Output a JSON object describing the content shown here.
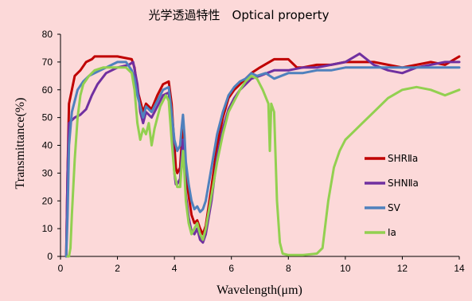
{
  "chart_data": {
    "type": "line",
    "title": "光学透過特性　Optical property",
    "xlabel": "Wavelength(μm)",
    "ylabel": "Transmittance(%)",
    "xlim": [
      0,
      14
    ],
    "ylim": [
      0,
      80
    ],
    "xticks": [
      0,
      2,
      4,
      6,
      8,
      10,
      12,
      14
    ],
    "yticks": [
      0,
      10,
      20,
      30,
      40,
      50,
      60,
      70,
      80
    ],
    "grid": false,
    "legend_position": "right",
    "series": [
      {
        "name": "SHRⅡa",
        "color": "#c00000",
        "points": [
          [
            0.2,
            0
          ],
          [
            0.25,
            30
          ],
          [
            0.3,
            55
          ],
          [
            0.4,
            60
          ],
          [
            0.5,
            65
          ],
          [
            0.7,
            67
          ],
          [
            0.9,
            70
          ],
          [
            1.1,
            71
          ],
          [
            1.2,
            72
          ],
          [
            1.6,
            72
          ],
          [
            2.0,
            72
          ],
          [
            2.5,
            71
          ],
          [
            2.6,
            68
          ],
          [
            2.7,
            60
          ],
          [
            2.8,
            56
          ],
          [
            2.9,
            52
          ],
          [
            3.0,
            55
          ],
          [
            3.2,
            53
          ],
          [
            3.4,
            58
          ],
          [
            3.6,
            62
          ],
          [
            3.8,
            63
          ],
          [
            3.9,
            55
          ],
          [
            4.0,
            40
          ],
          [
            4.05,
            32
          ],
          [
            4.1,
            30
          ],
          [
            4.2,
            32
          ],
          [
            4.25,
            40
          ],
          [
            4.3,
            46
          ],
          [
            4.35,
            40
          ],
          [
            4.4,
            30
          ],
          [
            4.5,
            22
          ],
          [
            4.6,
            15
          ],
          [
            4.7,
            12
          ],
          [
            4.8,
            13
          ],
          [
            4.9,
            10
          ],
          [
            5.0,
            8
          ],
          [
            5.1,
            11
          ],
          [
            5.3,
            25
          ],
          [
            5.5,
            40
          ],
          [
            5.7,
            50
          ],
          [
            5.9,
            57
          ],
          [
            6.1,
            60
          ],
          [
            6.3,
            62
          ],
          [
            6.5,
            64
          ],
          [
            6.7,
            66
          ],
          [
            7.0,
            68
          ],
          [
            7.5,
            71
          ],
          [
            8.0,
            71
          ],
          [
            8.3,
            68
          ],
          [
            8.5,
            68
          ],
          [
            9.0,
            69
          ],
          [
            9.5,
            69
          ],
          [
            10,
            70
          ],
          [
            10.5,
            70
          ],
          [
            11,
            70
          ],
          [
            11.5,
            69
          ],
          [
            12,
            68
          ],
          [
            12.5,
            69
          ],
          [
            13,
            70
          ],
          [
            13.5,
            69
          ],
          [
            14,
            72
          ]
        ]
      },
      {
        "name": "SHNⅡa",
        "color": "#7030a0",
        "points": [
          [
            0.2,
            0
          ],
          [
            0.25,
            30
          ],
          [
            0.3,
            48
          ],
          [
            0.5,
            50
          ],
          [
            0.7,
            51
          ],
          [
            0.9,
            53
          ],
          [
            1.1,
            58
          ],
          [
            1.3,
            62
          ],
          [
            1.6,
            66
          ],
          [
            2.0,
            68
          ],
          [
            2.4,
            69
          ],
          [
            2.55,
            70
          ],
          [
            2.7,
            62
          ],
          [
            2.8,
            52
          ],
          [
            2.9,
            48
          ],
          [
            3.0,
            52
          ],
          [
            3.2,
            50
          ],
          [
            3.4,
            54
          ],
          [
            3.6,
            58
          ],
          [
            3.8,
            59
          ],
          [
            3.9,
            48
          ],
          [
            4.0,
            30
          ],
          [
            4.05,
            26
          ],
          [
            4.1,
            26
          ],
          [
            4.2,
            28
          ],
          [
            4.25,
            36
          ],
          [
            4.3,
            42
          ],
          [
            4.35,
            34
          ],
          [
            4.4,
            22
          ],
          [
            4.5,
            14
          ],
          [
            4.6,
            9
          ],
          [
            4.7,
            8
          ],
          [
            4.8,
            10
          ],
          [
            4.9,
            6
          ],
          [
            5.0,
            5
          ],
          [
            5.1,
            8
          ],
          [
            5.3,
            20
          ],
          [
            5.5,
            36
          ],
          [
            5.7,
            46
          ],
          [
            5.9,
            53
          ],
          [
            6.1,
            57
          ],
          [
            6.3,
            60
          ],
          [
            6.5,
            62
          ],
          [
            6.7,
            64
          ],
          [
            7.0,
            65
          ],
          [
            7.5,
            67
          ],
          [
            8.0,
            67
          ],
          [
            8.5,
            68
          ],
          [
            9.0,
            68
          ],
          [
            9.5,
            69
          ],
          [
            10,
            70
          ],
          [
            10.5,
            73
          ],
          [
            11,
            69
          ],
          [
            11.5,
            67
          ],
          [
            12,
            66
          ],
          [
            12.5,
            68
          ],
          [
            13,
            69
          ],
          [
            13.5,
            70
          ],
          [
            14,
            70
          ]
        ]
      },
      {
        "name": "SV",
        "color": "#4f81bd",
        "points": [
          [
            0.2,
            0
          ],
          [
            0.25,
            15
          ],
          [
            0.3,
            40
          ],
          [
            0.4,
            52
          ],
          [
            0.6,
            60
          ],
          [
            0.8,
            63
          ],
          [
            1.0,
            65
          ],
          [
            1.2,
            66
          ],
          [
            1.4,
            67
          ],
          [
            1.6,
            68
          ],
          [
            1.8,
            69
          ],
          [
            2.0,
            70
          ],
          [
            2.3,
            70
          ],
          [
            2.5,
            67
          ],
          [
            2.6,
            64
          ],
          [
            2.7,
            58
          ],
          [
            2.8,
            54
          ],
          [
            2.9,
            50
          ],
          [
            3.0,
            54
          ],
          [
            3.2,
            52
          ],
          [
            3.4,
            56
          ],
          [
            3.6,
            60
          ],
          [
            3.8,
            61
          ],
          [
            3.9,
            52
          ],
          [
            4.0,
            42
          ],
          [
            4.1,
            38
          ],
          [
            4.2,
            40
          ],
          [
            4.25,
            46
          ],
          [
            4.3,
            51
          ],
          [
            4.35,
            44
          ],
          [
            4.4,
            34
          ],
          [
            4.5,
            26
          ],
          [
            4.6,
            20
          ],
          [
            4.7,
            17
          ],
          [
            4.8,
            18
          ],
          [
            4.9,
            16
          ],
          [
            5.0,
            17
          ],
          [
            5.1,
            20
          ],
          [
            5.3,
            32
          ],
          [
            5.5,
            44
          ],
          [
            5.7,
            52
          ],
          [
            5.9,
            58
          ],
          [
            6.1,
            61
          ],
          [
            6.3,
            63
          ],
          [
            6.5,
            64
          ],
          [
            6.7,
            66
          ],
          [
            6.9,
            65
          ],
          [
            7.2,
            66
          ],
          [
            7.5,
            64
          ],
          [
            8.0,
            66
          ],
          [
            8.5,
            66
          ],
          [
            9.0,
            67
          ],
          [
            9.5,
            67
          ],
          [
            10,
            68
          ],
          [
            10.5,
            68
          ],
          [
            11,
            68
          ],
          [
            11.5,
            68
          ],
          [
            12,
            68
          ],
          [
            12.5,
            68
          ],
          [
            13,
            68
          ],
          [
            13.5,
            68
          ],
          [
            14,
            68
          ]
        ]
      },
      {
        "name": "Ⅰa",
        "color": "#92d050",
        "points": [
          [
            0.25,
            0
          ],
          [
            0.3,
            0
          ],
          [
            0.35,
            3
          ],
          [
            0.4,
            15
          ],
          [
            0.5,
            35
          ],
          [
            0.6,
            50
          ],
          [
            0.7,
            58
          ],
          [
            0.8,
            62
          ],
          [
            1.0,
            65
          ],
          [
            1.2,
            67
          ],
          [
            1.5,
            68
          ],
          [
            2.0,
            68
          ],
          [
            2.3,
            68
          ],
          [
            2.5,
            66
          ],
          [
            2.6,
            60
          ],
          [
            2.7,
            48
          ],
          [
            2.8,
            42
          ],
          [
            2.9,
            46
          ],
          [
            3.0,
            44
          ],
          [
            3.1,
            48
          ],
          [
            3.2,
            40
          ],
          [
            3.3,
            46
          ],
          [
            3.5,
            54
          ],
          [
            3.7,
            58
          ],
          [
            3.8,
            56
          ],
          [
            3.9,
            42
          ],
          [
            4.0,
            30
          ],
          [
            4.1,
            25
          ],
          [
            4.2,
            25
          ],
          [
            4.25,
            32
          ],
          [
            4.3,
            38
          ],
          [
            4.35,
            30
          ],
          [
            4.4,
            20
          ],
          [
            4.5,
            12
          ],
          [
            4.6,
            8
          ],
          [
            4.7,
            10
          ],
          [
            4.8,
            12
          ],
          [
            4.9,
            8
          ],
          [
            5.0,
            6
          ],
          [
            5.1,
            10
          ],
          [
            5.3,
            22
          ],
          [
            5.5,
            34
          ],
          [
            5.7,
            44
          ],
          [
            5.9,
            52
          ],
          [
            6.1,
            56
          ],
          [
            6.3,
            60
          ],
          [
            6.5,
            63
          ],
          [
            6.7,
            65
          ],
          [
            6.9,
            64
          ],
          [
            7.1,
            60
          ],
          [
            7.3,
            55
          ],
          [
            7.35,
            38
          ],
          [
            7.4,
            55
          ],
          [
            7.5,
            52
          ],
          [
            7.6,
            20
          ],
          [
            7.7,
            5
          ],
          [
            7.8,
            1
          ],
          [
            8.0,
            0.5
          ],
          [
            8.5,
            0.5
          ],
          [
            9.0,
            1
          ],
          [
            9.2,
            3
          ],
          [
            9.4,
            20
          ],
          [
            9.6,
            32
          ],
          [
            9.8,
            38
          ],
          [
            10,
            42
          ],
          [
            10.3,
            45
          ],
          [
            10.6,
            48
          ],
          [
            11,
            52
          ],
          [
            11.5,
            57
          ],
          [
            12,
            60
          ],
          [
            12.5,
            61
          ],
          [
            13,
            60
          ],
          [
            13.5,
            58
          ],
          [
            14,
            60
          ]
        ]
      }
    ]
  }
}
